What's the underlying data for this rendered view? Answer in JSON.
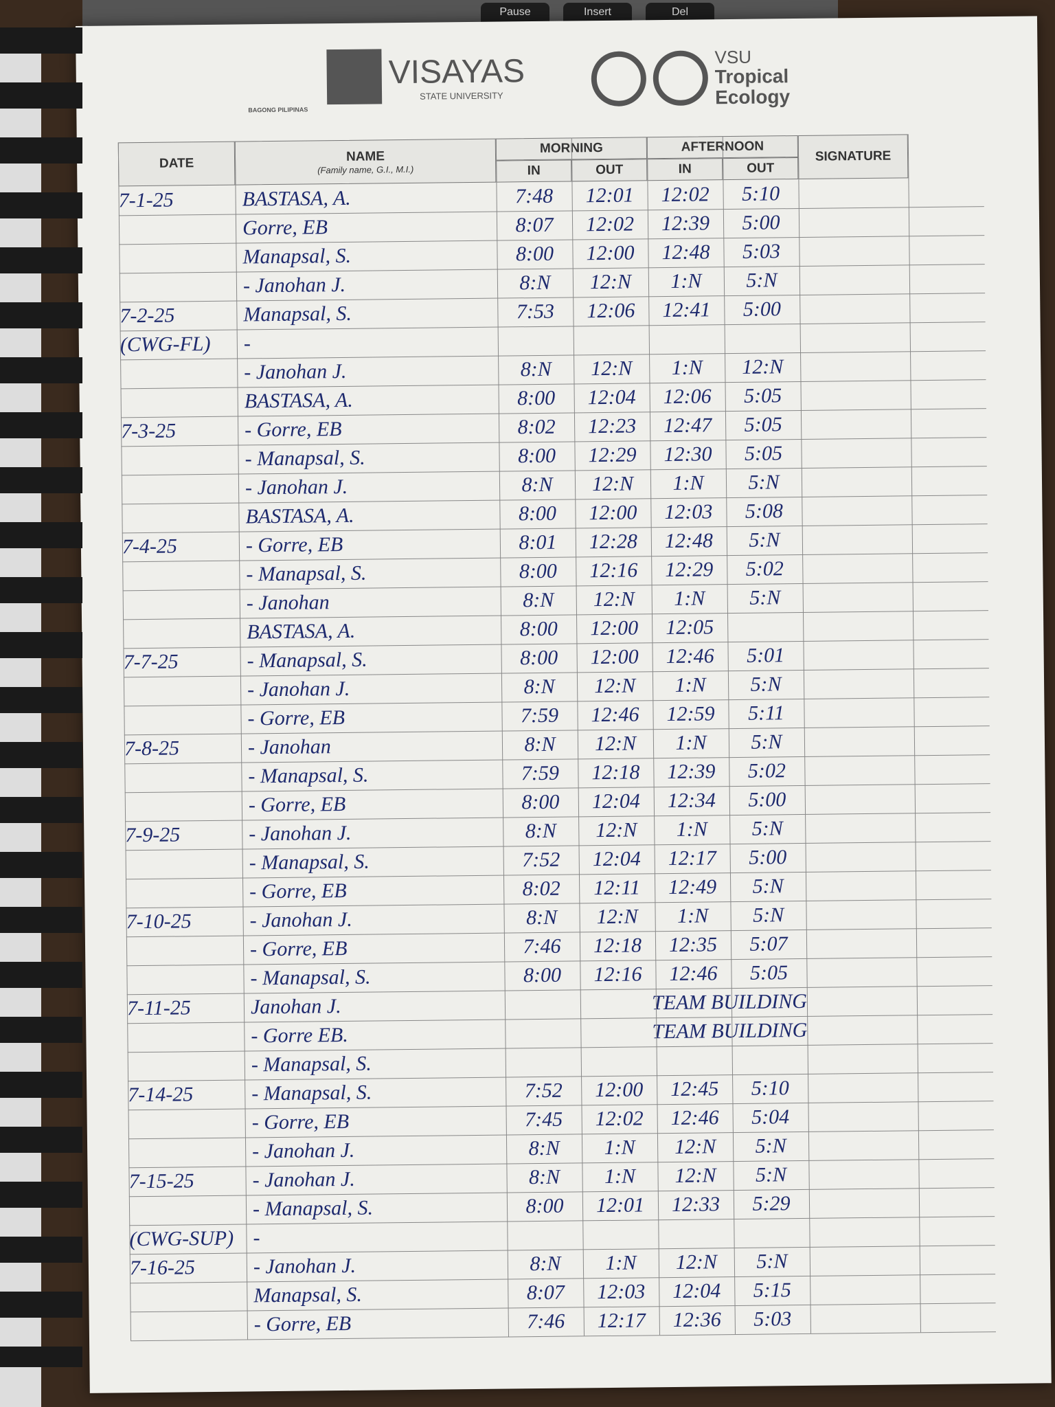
{
  "keyboard": {
    "keys": [
      "Pause",
      "Insert",
      "Del"
    ]
  },
  "header": {
    "bagong": "BAGONG PILIPINAS",
    "visayas": "VISAYAS",
    "state_university": "STATE UNIVERSITY",
    "vsu": "VSU",
    "tropical": "Tropical",
    "ecology": "Ecology"
  },
  "table": {
    "columns": {
      "date": "DATE",
      "name": "NAME",
      "name_hint": "(Family name, G.I., M.I.)",
      "morning": "MORNING",
      "afternoon": "AFTERNOON",
      "in": "IN",
      "out": "OUT",
      "signature": "SIGNATURE"
    },
    "rows": [
      {
        "date": "7-1-25",
        "name": "BASTASA, A.",
        "times": [
          "7:48",
          "12:01",
          "12:02",
          "5:10"
        ]
      },
      {
        "name": "Gorre, EB",
        "times": [
          "8:07",
          "12:02",
          "12:39",
          "5:00"
        ]
      },
      {
        "name": "Manapsal, S.",
        "times": [
          "8:00",
          "12:00",
          "12:48",
          "5:03"
        ]
      },
      {
        "name": "- Janohan J.",
        "times": [
          "8:N",
          "12:N",
          "1:N",
          "5:N"
        ]
      },
      {
        "date": "7-2-25",
        "name": "Manapsal, S.",
        "times": [
          "7:53",
          "12:06",
          "12:41",
          "5:00"
        ]
      },
      {
        "date": "(CWG-FL)",
        "name": "-"
      },
      {
        "name": "- Janohan J.",
        "times": [
          "8:N",
          "12:N",
          "1:N",
          "12:N"
        ]
      },
      {
        "name": "BASTASA, A.",
        "times": [
          "8:00",
          "12:04",
          "12:06",
          "5:05"
        ]
      },
      {
        "date": "7-3-25",
        "name": "- Gorre, EB",
        "times": [
          "8:02",
          "12:23",
          "12:47",
          "5:05"
        ]
      },
      {
        "name": "- Manapsal, S.",
        "times": [
          "8:00",
          "12:29",
          "12:30",
          "5:05"
        ]
      },
      {
        "name": "- Janohan J.",
        "times": [
          "8:N",
          "12:N",
          "1:N",
          "5:N"
        ]
      },
      {
        "name": "BASTASA, A.",
        "times": [
          "8:00",
          "12:00",
          "12:03",
          "5:08"
        ]
      },
      {
        "date": "7-4-25",
        "name": "- Gorre, EB",
        "times": [
          "8:01",
          "12:28",
          "12:48",
          "5:N"
        ]
      },
      {
        "name": "- Manapsal, S.",
        "times": [
          "8:00",
          "12:16",
          "12:29",
          "5:02"
        ]
      },
      {
        "name": "- Janohan",
        "times": [
          "8:N",
          "12:N",
          "1:N",
          "5:N"
        ]
      },
      {
        "name": "BASTASA, A.",
        "times": [
          "8:00",
          "12:00",
          "12:05"
        ]
      },
      {
        "date": "7-7-25",
        "name": "- Manapsal, S.",
        "times": [
          "8:00",
          "12:00",
          "12:46",
          "5:01"
        ]
      },
      {
        "name": "- Janohan J.",
        "times": [
          "8:N",
          "12:N",
          "1:N",
          "5:N"
        ]
      },
      {
        "name": "- Gorre, EB",
        "times": [
          "7:59",
          "12:46",
          "12:59",
          "5:11"
        ]
      },
      {
        "date": "7-8-25",
        "name": "- Janohan",
        "times": [
          "8:N",
          "12:N",
          "1:N",
          "5:N"
        ]
      },
      {
        "name": "- Manapsal, S.",
        "times": [
          "7:59",
          "12:18",
          "12:39",
          "5:02"
        ]
      },
      {
        "name": "- Gorre, EB",
        "times": [
          "8:00",
          "12:04",
          "12:34",
          "5:00"
        ]
      },
      {
        "date": "7-9-25",
        "name": "- Janohan J.",
        "times": [
          "8:N",
          "12:N",
          "1:N",
          "5:N"
        ]
      },
      {
        "name": "- Manapsal, S.",
        "times": [
          "7:52",
          "12:04",
          "12:17",
          "5:00"
        ]
      },
      {
        "name": "- Gorre, EB",
        "times": [
          "8:02",
          "12:11",
          "12:49",
          "5:N"
        ]
      },
      {
        "date": "7-10-25",
        "name": "- Janohan J.",
        "times": [
          "8:N",
          "12:N",
          "1:N",
          "5:N"
        ]
      },
      {
        "name": "- Gorre, EB",
        "times": [
          "7:46",
          "12:18",
          "12:35",
          "5:07"
        ]
      },
      {
        "name": "- Manapsal, S.",
        "times": [
          "8:00",
          "12:16",
          "12:46",
          "5:05"
        ]
      },
      {
        "date": "7-11-25",
        "name": "Janohan J.",
        "note": "TEAM BUILDING"
      },
      {
        "name": "- Gorre EB.",
        "note": "TEAM BUILDING"
      },
      {
        "name": "- Manapsal, S."
      },
      {
        "date": "7-14-25",
        "name": "- Manapsal, S.",
        "times": [
          "7:52",
          "12:00",
          "12:45",
          "5:10"
        ]
      },
      {
        "name": "- Gorre, EB",
        "times": [
          "7:45",
          "12:02",
          "12:46",
          "5:04"
        ]
      },
      {
        "name": "- Janohan J.",
        "times": [
          "8:N",
          "1:N",
          "12:N",
          "5:N"
        ]
      },
      {
        "date": "7-15-25",
        "name": "- Janohan J.",
        "times": [
          "8:N",
          "1:N",
          "12:N",
          "5:N"
        ]
      },
      {
        "name": "- Manapsal, S.",
        "times": [
          "8:00",
          "12:01",
          "12:33",
          "5:29"
        ]
      },
      {
        "date": "(CWG-SUP)",
        "name": "-"
      },
      {
        "date": "7-16-25",
        "name": "- Janohan J.",
        "times": [
          "8:N",
          "1:N",
          "12:N",
          "5:N"
        ]
      },
      {
        "name": "Manapsal, S.",
        "times": [
          "8:07",
          "12:03",
          "12:04",
          "5:15"
        ]
      },
      {
        "name": "- Gorre, EB",
        "times": [
          "7:46",
          "12:17",
          "12:36",
          "5:03"
        ]
      }
    ]
  }
}
